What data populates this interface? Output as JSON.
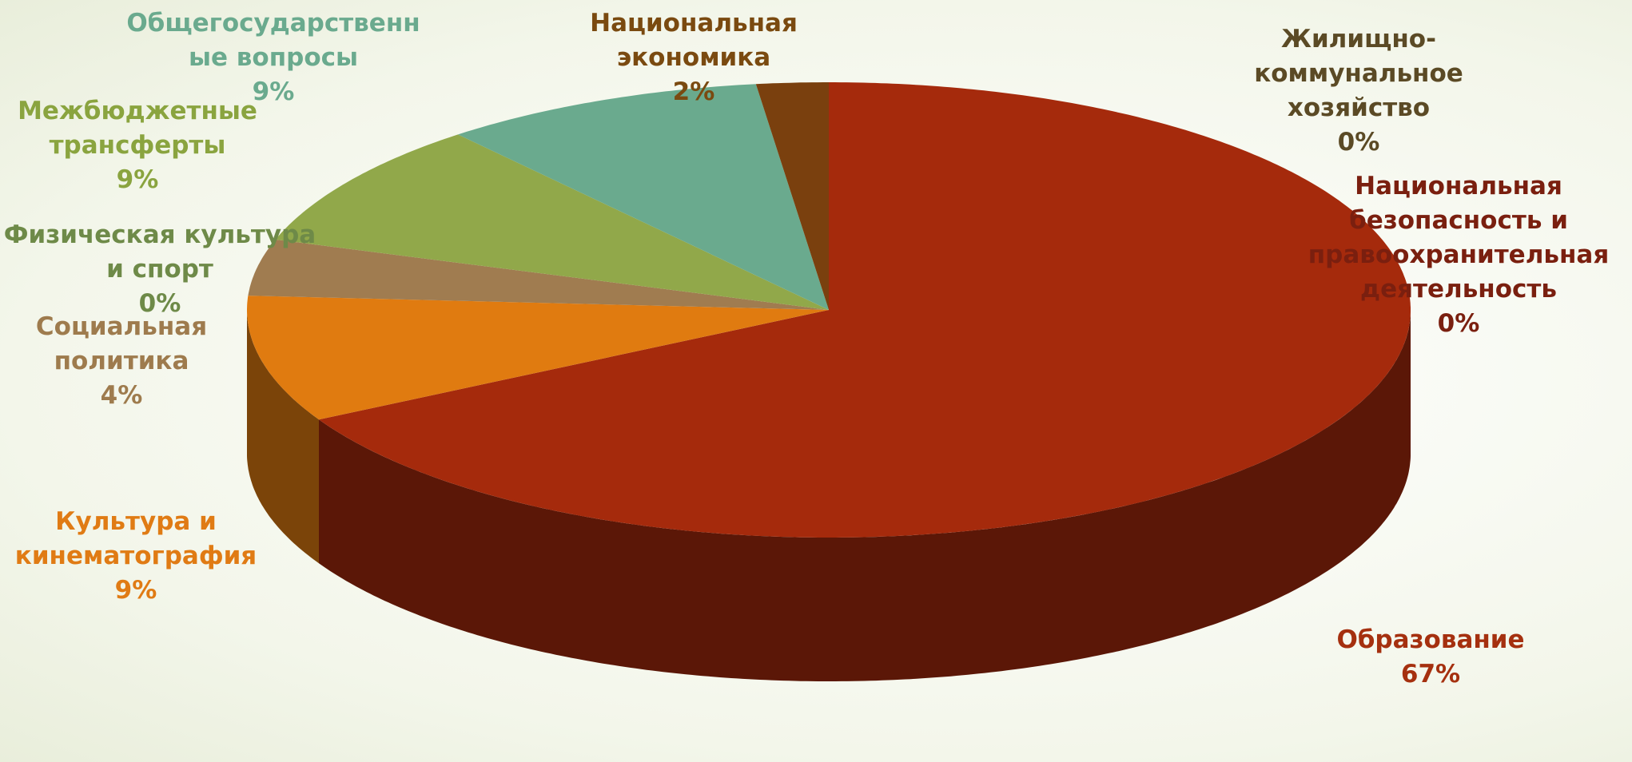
{
  "chart_data": {
    "type": "pie3d",
    "categories": [
      "Жилищно-коммунальное\nхозяйство",
      "Национальная\nбезопасность и\nправоохранительная\nдеятельность",
      "Образование",
      "Культура и\nкинематография",
      "Социальная\nполитика",
      "Физическая культура\nи спорт",
      "Межбюджетные\nтрансферты",
      "Общегосударственн\nые вопросы",
      "Национальная\nэкономика"
    ],
    "values": [
      0,
      0,
      67,
      9,
      4,
      0,
      9,
      9,
      2
    ],
    "value_labels": [
      "0%",
      "0%",
      "67%",
      "9%",
      "4%",
      "0%",
      "9%",
      "9%",
      "2%"
    ],
    "colors": [
      "#7a3a10",
      "#8b2a10",
      "#a52a0c",
      "#e07b10",
      "#a07c50",
      "#6e8a48",
      "#91a84a",
      "#6aaa8e",
      "#7a400e"
    ]
  }
}
